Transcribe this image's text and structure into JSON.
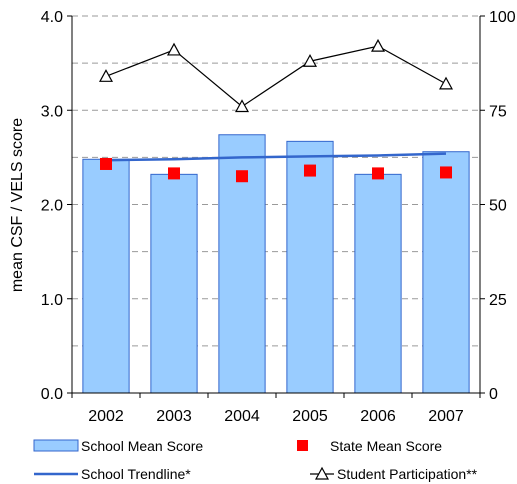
{
  "chart_data": {
    "type": "bar",
    "categories": [
      "2002",
      "2003",
      "2004",
      "2005",
      "2006",
      "2007"
    ],
    "ylabel": "mean CSF / VELS score",
    "ylim": [
      0,
      4
    ],
    "y_ticks": [
      "0.0",
      "1.0",
      "2.0",
      "3.0",
      "4.0"
    ],
    "y2lim": [
      0,
      100
    ],
    "y2_ticks": [
      "0",
      "25",
      "50",
      "75",
      "100"
    ],
    "grid": "horizontal dashed",
    "legend_position": "bottom",
    "series": [
      {
        "name": "School Mean Score",
        "type": "bar",
        "axis": "left",
        "color": "#99ccff",
        "values": [
          2.48,
          2.32,
          2.74,
          2.67,
          2.32,
          2.56
        ]
      },
      {
        "name": "State Mean Score",
        "type": "scatter",
        "axis": "left",
        "color": "#ff0000",
        "values": [
          2.43,
          2.33,
          2.3,
          2.36,
          2.33,
          2.34
        ]
      },
      {
        "name": "School Trendline*",
        "type": "line",
        "axis": "left",
        "color": "#3366cc",
        "values": [
          2.47,
          2.48,
          2.5,
          2.51,
          2.52,
          2.54
        ]
      },
      {
        "name": "Student Participation**",
        "type": "line",
        "axis": "right",
        "color": "#000000",
        "values": [
          84,
          91,
          76,
          88,
          92,
          82
        ]
      }
    ]
  }
}
